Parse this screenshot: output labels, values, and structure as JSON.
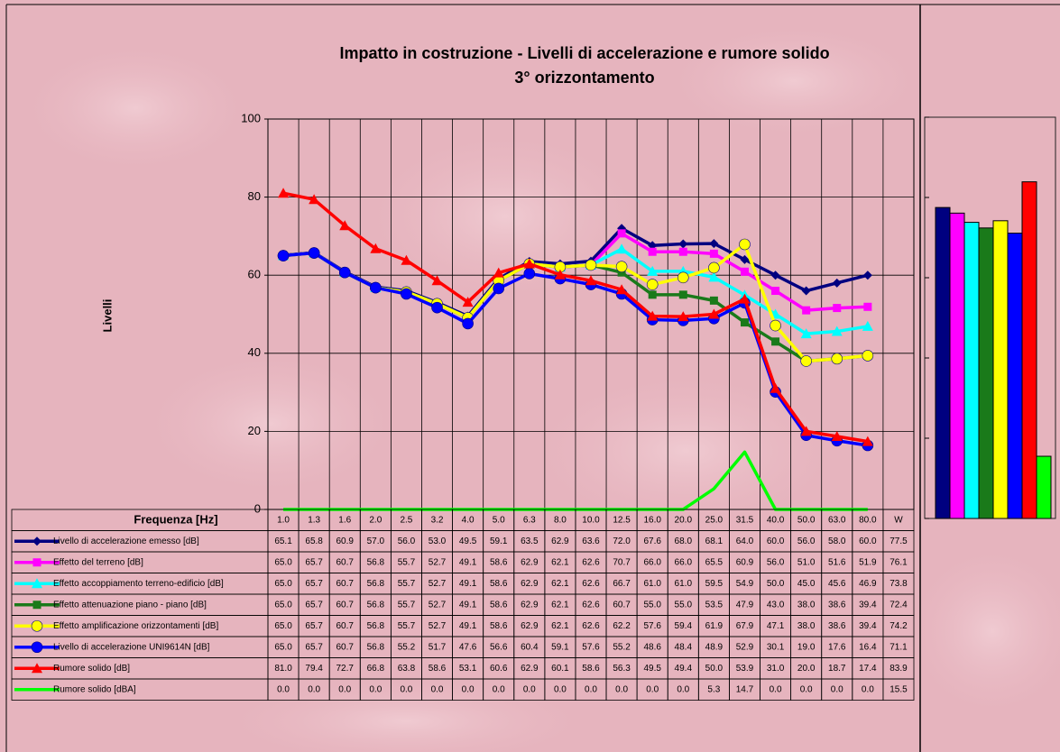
{
  "chart_data": {
    "type": "line",
    "title": "Impatto in costruzione - Livelli di accelerazione e rumore solido",
    "subtitle": "3° orizzontamento",
    "y_label": "Livelli",
    "x_label": "Frequenza [Hz]",
    "categories": [
      "1.0",
      "1.3",
      "1.6",
      "2.0",
      "2.5",
      "3.2",
      "4.0",
      "5.0",
      "6.3",
      "8.0",
      "10.0",
      "12.5",
      "16.0",
      "20.0",
      "25.0",
      "31.5",
      "40.0",
      "50.0",
      "63.0",
      "80.0"
    ],
    "total_label": "W",
    "ylim": [
      0,
      100
    ],
    "yticks": [
      0,
      20,
      40,
      60,
      80,
      100
    ],
    "grid": true,
    "series": [
      {
        "name": "Livello di accelerazione emesso [dB]",
        "color": "#000080",
        "marker": "diamond",
        "values": [
          65.1,
          65.8,
          60.9,
          57.0,
          56.0,
          53.0,
          49.5,
          59.1,
          63.5,
          62.9,
          63.6,
          72.0,
          67.6,
          68.0,
          68.1,
          64.0,
          60.0,
          56.0,
          58.0,
          60.0
        ],
        "value_labels": [
          "65.1",
          "65.8",
          "60.9",
          "57.0",
          "56.0",
          "53.0",
          "49.5",
          "59.1",
          "63.5",
          "62.9",
          "63.6",
          "72.0",
          "67.6",
          "68.0",
          "68.1",
          "64.0",
          "60.0",
          "56.0",
          "58.0",
          "60.0"
        ],
        "total": 77.5,
        "total_label": "77.5"
      },
      {
        "name": "Effetto del terreno [dB]",
        "color": "#ff00ff",
        "marker": "square",
        "values": [
          65.0,
          65.7,
          60.7,
          56.8,
          55.7,
          52.7,
          49.1,
          58.6,
          62.9,
          62.1,
          62.6,
          70.7,
          66.0,
          66.0,
          65.5,
          60.9,
          56.0,
          51.0,
          51.6,
          51.9
        ],
        "value_labels": [
          "65.0",
          "65.7",
          "60.7",
          "56.8",
          "55.7",
          "52.7",
          "49.1",
          "58.6",
          "62.9",
          "62.1",
          "62.6",
          "70.7",
          "66.0",
          "66.0",
          "65.5",
          "60.9",
          "56.0",
          "51.0",
          "51.6",
          "51.9"
        ],
        "total": 76.1,
        "total_label": "76.1"
      },
      {
        "name": "Effetto accoppiamento terreno-edificio [dB]",
        "color": "#00ffff",
        "marker": "triangle",
        "values": [
          65.0,
          65.7,
          60.7,
          56.8,
          55.7,
          52.7,
          49.1,
          58.6,
          62.9,
          62.1,
          62.6,
          66.7,
          61.0,
          61.0,
          59.5,
          54.9,
          50.0,
          45.0,
          45.6,
          46.9
        ],
        "value_labels": [
          "65.0",
          "65.7",
          "60.7",
          "56.8",
          "55.7",
          "52.7",
          "49.1",
          "58.6",
          "62.9",
          "62.1",
          "62.6",
          "66.7",
          "61.0",
          "61.0",
          "59.5",
          "54.9",
          "50.0",
          "45.0",
          "45.6",
          "46.9"
        ],
        "total": 73.8,
        "total_label": "73.8"
      },
      {
        "name": "Effetto attenuazione piano - piano [dB]",
        "color": "#1a7a1a",
        "marker": "square",
        "values": [
          65.0,
          65.7,
          60.7,
          56.8,
          55.7,
          52.7,
          49.1,
          58.6,
          62.9,
          62.1,
          62.6,
          60.7,
          55.0,
          55.0,
          53.5,
          47.9,
          43.0,
          38.0,
          38.6,
          39.4
        ],
        "value_labels": [
          "65.0",
          "65.7",
          "60.7",
          "56.8",
          "55.7",
          "52.7",
          "49.1",
          "58.6",
          "62.9",
          "62.1",
          "62.6",
          "60.7",
          "55.0",
          "55.0",
          "53.5",
          "47.9",
          "43.0",
          "38.0",
          "38.6",
          "39.4"
        ],
        "total": 72.4,
        "total_label": "72.4"
      },
      {
        "name": "Effetto amplificazione orizzontamenti [dB]",
        "color": "#ffff00",
        "marker": "circle",
        "values": [
          65.0,
          65.7,
          60.7,
          56.8,
          55.7,
          52.7,
          49.1,
          58.6,
          62.9,
          62.1,
          62.6,
          62.2,
          57.6,
          59.4,
          61.9,
          67.9,
          47.1,
          38.0,
          38.6,
          39.4
        ],
        "value_labels": [
          "65.0",
          "65.7",
          "60.7",
          "56.8",
          "55.7",
          "52.7",
          "49.1",
          "58.6",
          "62.9",
          "62.1",
          "62.6",
          "62.2",
          "57.6",
          "59.4",
          "61.9",
          "67.9",
          "47.1",
          "38.0",
          "38.6",
          "39.4"
        ],
        "total": 74.2,
        "total_label": "74.2"
      },
      {
        "name": "Livello di accelerazione UNI9614N [dB]",
        "color": "#0000ff",
        "marker": "circle",
        "values": [
          65.0,
          65.7,
          60.7,
          56.8,
          55.2,
          51.7,
          47.6,
          56.6,
          60.4,
          59.1,
          57.6,
          55.2,
          48.6,
          48.4,
          48.9,
          52.9,
          30.1,
          19.0,
          17.6,
          16.4
        ],
        "value_labels": [
          "65.0",
          "65.7",
          "60.7",
          "56.8",
          "55.2",
          "51.7",
          "47.6",
          "56.6",
          "60.4",
          "59.1",
          "57.6",
          "55.2",
          "48.6",
          "48.4",
          "48.9",
          "52.9",
          "30.1",
          "19.0",
          "17.6",
          "16.4"
        ],
        "total": 71.1,
        "total_label": "71.1"
      },
      {
        "name": "Rumore solido [dB]",
        "color": "#ff0000",
        "marker": "triangle",
        "values": [
          81.0,
          79.4,
          72.7,
          66.8,
          63.8,
          58.6,
          53.1,
          60.6,
          62.9,
          60.1,
          58.6,
          56.3,
          49.5,
          49.4,
          50.0,
          53.9,
          31.0,
          20.0,
          18.7,
          17.4
        ],
        "value_labels": [
          "81.0",
          "79.4",
          "72.7",
          "66.8",
          "63.8",
          "58.6",
          "53.1",
          "60.6",
          "62.9",
          "60.1",
          "58.6",
          "56.3",
          "49.5",
          "49.4",
          "50.0",
          "53.9",
          "31.0",
          "20.0",
          "18.7",
          "17.4"
        ],
        "total": 83.9,
        "total_label": "83.9"
      },
      {
        "name": "Rumore solido [dBA]",
        "color": "#00ff00",
        "marker": "none",
        "values": [
          0.0,
          0.0,
          0.0,
          0.0,
          0.0,
          0.0,
          0.0,
          0.0,
          0.0,
          0.0,
          0.0,
          0.0,
          0.0,
          0.0,
          5.3,
          14.7,
          0.0,
          0.0,
          0.0,
          0.0
        ],
        "value_labels": [
          "0.0",
          "0.0",
          "0.0",
          "0.0",
          "0.0",
          "0.0",
          "0.0",
          "0.0",
          "0.0",
          "0.0",
          "0.0",
          "0.0",
          "0.0",
          "0.0",
          "5.3",
          "14.7",
          "0.0",
          "0.0",
          "0.0",
          "0.0"
        ],
        "total": 15.5,
        "total_label": "15.5"
      }
    ]
  }
}
